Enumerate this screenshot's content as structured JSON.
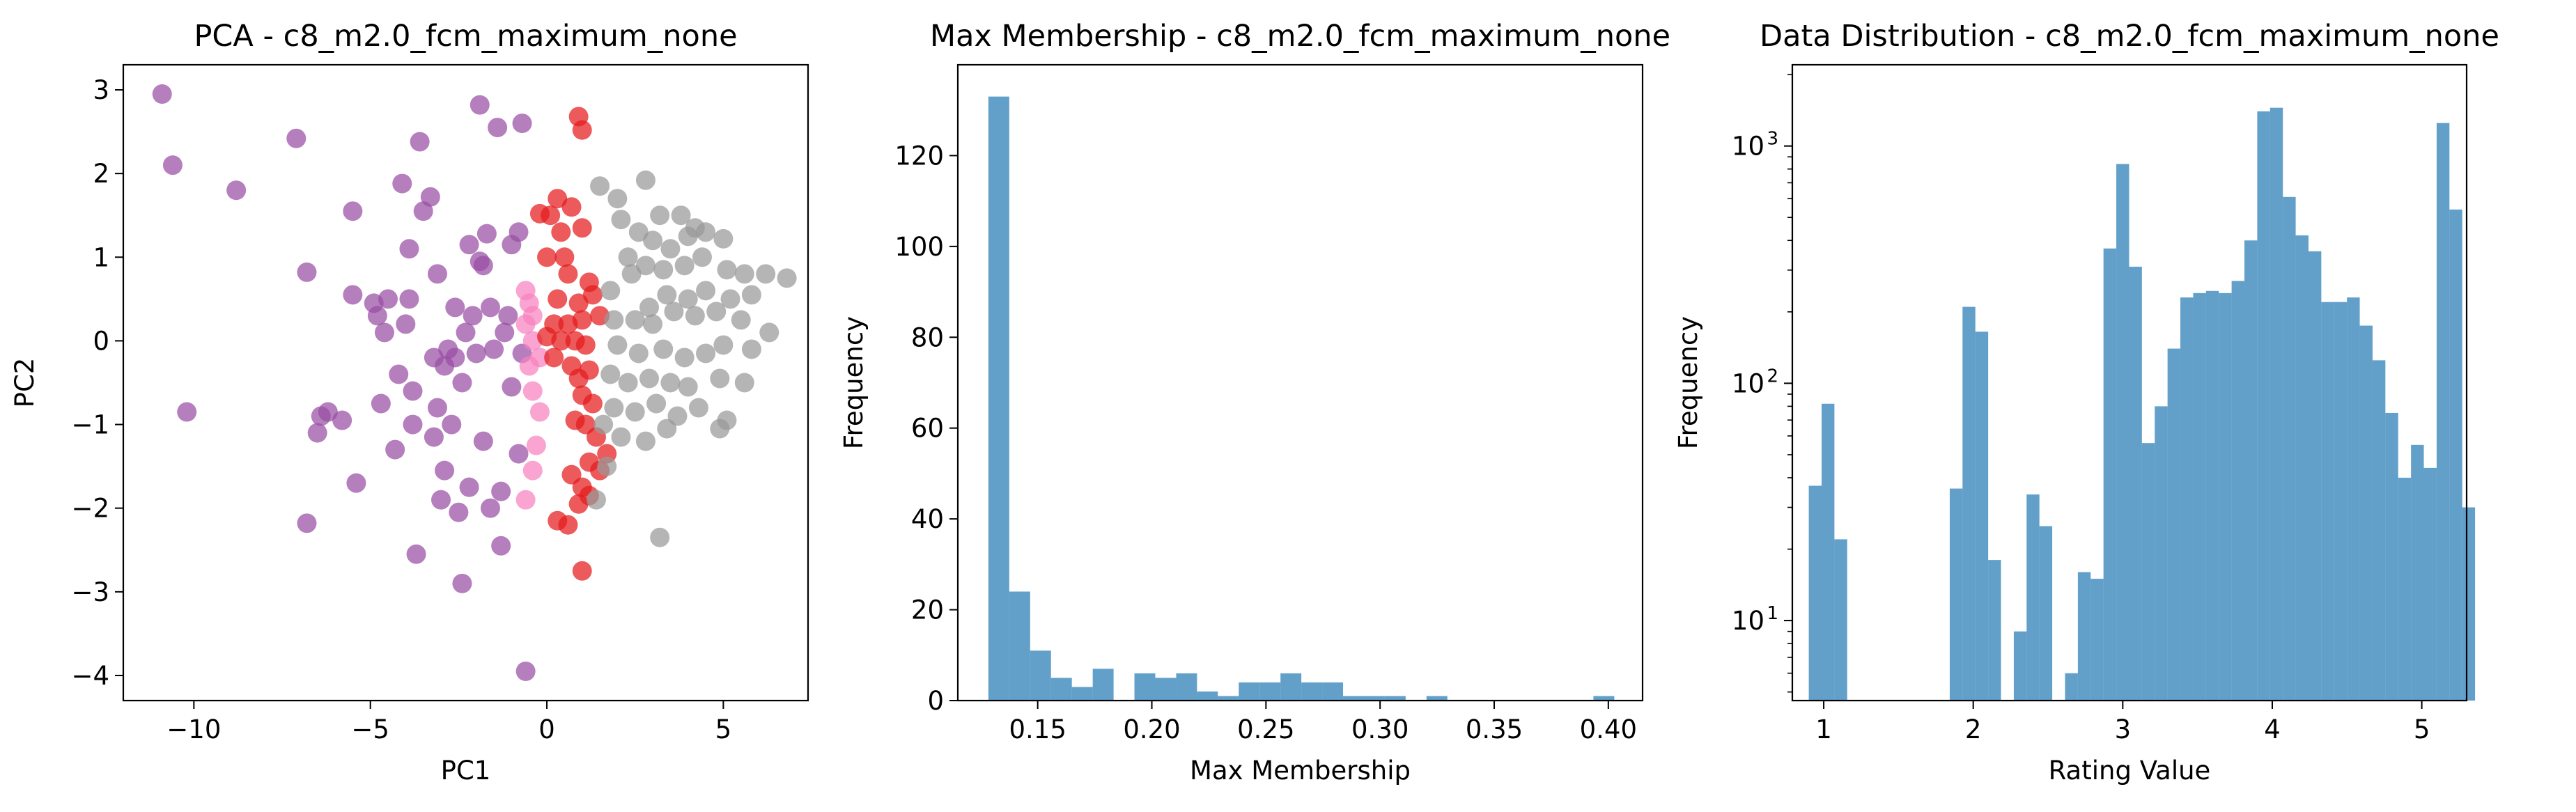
{
  "colors": {
    "purple": "#984ea3",
    "red": "#e41a1c",
    "pink": "#f781bf",
    "gray": "#999999",
    "hist": "#1f77b4"
  },
  "chart_data": [
    {
      "type": "scatter",
      "title": "PCA - c8_m2.0_fcm_maximum_none",
      "xlabel": "PC1",
      "ylabel": "PC2",
      "xlim": [
        -12,
        7.4
      ],
      "ylim": [
        -4.3,
        3.3
      ],
      "xticks": [
        -10,
        -5,
        0,
        5
      ],
      "xtick_labels": [
        "−10",
        "−5",
        "0",
        "5"
      ],
      "yticks": [
        -4,
        -3,
        -2,
        -1,
        0,
        1,
        2,
        3
      ],
      "ytick_labels": [
        "−4",
        "−3",
        "−2",
        "−1",
        "0",
        "1",
        "2",
        "3"
      ],
      "series": [
        {
          "color": "purple",
          "points": [
            [
              -10.9,
              2.95
            ],
            [
              -10.6,
              2.1
            ],
            [
              -8.8,
              1.8
            ],
            [
              -10.2,
              -0.85
            ],
            [
              -7.1,
              2.42
            ],
            [
              -6.8,
              0.82
            ],
            [
              -6.8,
              -2.18
            ],
            [
              -6.5,
              -1.1
            ],
            [
              -6.4,
              -0.9
            ],
            [
              -6.2,
              -0.85
            ],
            [
              -5.8,
              -0.95
            ],
            [
              -5.5,
              1.55
            ],
            [
              -5.5,
              0.55
            ],
            [
              -5.4,
              -1.7
            ],
            [
              -4.9,
              0.45
            ],
            [
              -4.8,
              0.3
            ],
            [
              -4.7,
              -0.75
            ],
            [
              -4.6,
              0.1
            ],
            [
              -4.5,
              0.5
            ],
            [
              -4.3,
              -1.3
            ],
            [
              -4.2,
              -0.4
            ],
            [
              -4.1,
              1.88
            ],
            [
              -4.0,
              0.2
            ],
            [
              -3.9,
              1.1
            ],
            [
              -3.9,
              0.5
            ],
            [
              -3.8,
              -0.6
            ],
            [
              -3.8,
              -1.0
            ],
            [
              -3.7,
              -2.55
            ],
            [
              -3.6,
              2.38
            ],
            [
              -3.5,
              1.55
            ],
            [
              -3.3,
              1.72
            ],
            [
              -3.2,
              -0.2
            ],
            [
              -3.2,
              -1.15
            ],
            [
              -3.1,
              0.8
            ],
            [
              -3.1,
              -0.8
            ],
            [
              -3.0,
              -1.9
            ],
            [
              -2.9,
              -0.3
            ],
            [
              -2.9,
              -1.55
            ],
            [
              -2.8,
              -0.1
            ],
            [
              -2.7,
              -1.0
            ],
            [
              -2.6,
              0.4
            ],
            [
              -2.6,
              -0.2
            ],
            [
              -2.5,
              -2.05
            ],
            [
              -2.4,
              -2.9
            ],
            [
              -2.4,
              -0.5
            ],
            [
              -2.3,
              0.1
            ],
            [
              -2.2,
              -1.75
            ],
            [
              -2.2,
              1.15
            ],
            [
              -2.1,
              0.3
            ],
            [
              -2.0,
              -0.15
            ],
            [
              -1.9,
              0.95
            ],
            [
              -1.9,
              2.82
            ],
            [
              -1.8,
              -1.2
            ],
            [
              -1.8,
              0.9
            ],
            [
              -1.7,
              1.28
            ],
            [
              -1.6,
              0.4
            ],
            [
              -1.6,
              -2.0
            ],
            [
              -1.5,
              -0.1
            ],
            [
              -1.4,
              2.55
            ],
            [
              -1.3,
              -1.8
            ],
            [
              -1.3,
              -2.45
            ],
            [
              -1.2,
              0.1
            ],
            [
              -1.1,
              0.3
            ],
            [
              -1.0,
              1.15
            ],
            [
              -1.0,
              -0.55
            ],
            [
              -0.8,
              -1.35
            ],
            [
              -0.8,
              1.3
            ],
            [
              -0.7,
              2.6
            ],
            [
              -0.6,
              -3.95
            ],
            [
              -0.7,
              -0.15
            ]
          ]
        },
        {
          "color": "pink",
          "points": [
            [
              -0.6,
              0.6
            ],
            [
              -0.5,
              0.45
            ],
            [
              -0.4,
              0.3
            ],
            [
              -0.6,
              0.2
            ],
            [
              -0.4,
              0.0
            ],
            [
              -0.2,
              -0.2
            ],
            [
              -0.5,
              -0.3
            ],
            [
              -0.4,
              -0.6
            ],
            [
              -0.2,
              -0.85
            ],
            [
              -0.3,
              -1.25
            ],
            [
              -0.4,
              -1.55
            ],
            [
              -0.6,
              -1.9
            ]
          ]
        },
        {
          "color": "red",
          "points": [
            [
              0.9,
              2.68
            ],
            [
              1.0,
              2.52
            ],
            [
              0.3,
              1.7
            ],
            [
              0.7,
              1.6
            ],
            [
              -0.2,
              1.52
            ],
            [
              0.1,
              1.5
            ],
            [
              0.4,
              1.3
            ],
            [
              1.0,
              1.35
            ],
            [
              0.5,
              1.0
            ],
            [
              0.0,
              1.0
            ],
            [
              0.6,
              0.8
            ],
            [
              1.2,
              0.7
            ],
            [
              0.3,
              0.5
            ],
            [
              0.9,
              0.45
            ],
            [
              1.3,
              0.55
            ],
            [
              0.2,
              0.2
            ],
            [
              0.6,
              0.2
            ],
            [
              1.0,
              0.25
            ],
            [
              1.5,
              0.3
            ],
            [
              0.0,
              0.05
            ],
            [
              0.4,
              0.0
            ],
            [
              0.8,
              0.0
            ],
            [
              1.1,
              -0.05
            ],
            [
              0.2,
              -0.2
            ],
            [
              0.7,
              -0.3
            ],
            [
              0.9,
              -0.45
            ],
            [
              1.2,
              -0.35
            ],
            [
              1.0,
              -0.65
            ],
            [
              1.3,
              -0.75
            ],
            [
              0.8,
              -0.95
            ],
            [
              1.1,
              -1.0
            ],
            [
              1.4,
              -1.15
            ],
            [
              1.2,
              -1.45
            ],
            [
              1.7,
              -1.35
            ],
            [
              0.7,
              -1.6
            ],
            [
              1.0,
              -1.75
            ],
            [
              0.9,
              -1.95
            ],
            [
              1.2,
              -1.85
            ],
            [
              0.3,
              -2.15
            ],
            [
              0.6,
              -2.2
            ],
            [
              1.0,
              -2.75
            ],
            [
              1.5,
              -1.55
            ]
          ]
        },
        {
          "color": "gray",
          "points": [
            [
              1.5,
              1.85
            ],
            [
              2.0,
              1.7
            ],
            [
              2.8,
              1.92
            ],
            [
              3.2,
              1.5
            ],
            [
              3.8,
              1.5
            ],
            [
              4.2,
              1.35
            ],
            [
              2.1,
              1.45
            ],
            [
              2.6,
              1.3
            ],
            [
              3.0,
              1.2
            ],
            [
              3.5,
              1.1
            ],
            [
              4.0,
              1.25
            ],
            [
              4.5,
              1.3
            ],
            [
              5.0,
              1.22
            ],
            [
              2.3,
              1.0
            ],
            [
              2.8,
              0.9
            ],
            [
              3.3,
              0.85
            ],
            [
              3.9,
              0.9
            ],
            [
              4.4,
              1.0
            ],
            [
              5.1,
              0.85
            ],
            [
              5.6,
              0.8
            ],
            [
              6.2,
              0.8
            ],
            [
              6.8,
              0.75
            ],
            [
              1.8,
              0.6
            ],
            [
              2.4,
              0.8
            ],
            [
              2.9,
              0.4
            ],
            [
              3.4,
              0.55
            ],
            [
              4.0,
              0.5
            ],
            [
              4.5,
              0.6
            ],
            [
              5.2,
              0.5
            ],
            [
              5.8,
              0.55
            ],
            [
              1.9,
              0.25
            ],
            [
              2.5,
              0.25
            ],
            [
              3.0,
              0.2
            ],
            [
              3.6,
              0.35
            ],
            [
              4.2,
              0.3
            ],
            [
              4.8,
              0.35
            ],
            [
              5.5,
              0.25
            ],
            [
              6.3,
              0.1
            ],
            [
              2.0,
              -0.05
            ],
            [
              2.6,
              -0.15
            ],
            [
              3.3,
              -0.1
            ],
            [
              3.9,
              -0.2
            ],
            [
              4.5,
              -0.15
            ],
            [
              5.0,
              -0.05
            ],
            [
              5.8,
              -0.1
            ],
            [
              1.8,
              -0.4
            ],
            [
              2.3,
              -0.5
            ],
            [
              2.9,
              -0.45
            ],
            [
              3.5,
              -0.5
            ],
            [
              4.0,
              -0.55
            ],
            [
              4.9,
              -0.45
            ],
            [
              5.6,
              -0.5
            ],
            [
              1.9,
              -0.8
            ],
            [
              2.5,
              -0.85
            ],
            [
              3.1,
              -0.75
            ],
            [
              3.7,
              -0.9
            ],
            [
              4.3,
              -0.8
            ],
            [
              5.1,
              -0.95
            ],
            [
              4.9,
              -1.05
            ],
            [
              2.1,
              -1.15
            ],
            [
              2.8,
              -1.2
            ],
            [
              3.4,
              -1.05
            ],
            [
              1.7,
              -1.5
            ],
            [
              3.2,
              -2.35
            ],
            [
              1.4,
              -1.9
            ],
            [
              1.6,
              -1.0
            ]
          ]
        }
      ]
    },
    {
      "type": "bar",
      "title": "Max Membership - c8_m2.0_fcm_maximum_none",
      "xlabel": "Max Membership",
      "ylabel": "Frequency",
      "xlim": [
        0.115,
        0.415
      ],
      "ylim": [
        0,
        140
      ],
      "xticks": [
        0.15,
        0.2,
        0.25,
        0.3,
        0.35,
        0.4
      ],
      "xtick_labels": [
        "0.15",
        "0.20",
        "0.25",
        "0.30",
        "0.35",
        "0.40"
      ],
      "yticks": [
        0,
        20,
        40,
        60,
        80,
        100,
        120
      ],
      "ytick_labels": [
        "0",
        "20",
        "40",
        "60",
        "80",
        "100",
        "120"
      ],
      "bin_start": 0.1284,
      "bin_width": 0.00914,
      "values": [
        133,
        24,
        11,
        5,
        3,
        7,
        0,
        6,
        5,
        6,
        2,
        1,
        4,
        4,
        6,
        4,
        4,
        1,
        1,
        1,
        0,
        1,
        0,
        0,
        0,
        0,
        0,
        0,
        0,
        1
      ]
    },
    {
      "type": "bar",
      "title": "Data Distribution - c8_m2.0_fcm_maximum_none",
      "xlabel": "Rating Value",
      "ylabel": "Frequency",
      "yscale": "log",
      "xlim": [
        0.79,
        5.3
      ],
      "ylim": [
        4.6,
        2200
      ],
      "xticks": [
        1,
        2,
        3,
        4,
        5
      ],
      "xtick_labels": [
        "1",
        "2",
        "3",
        "4",
        "5"
      ],
      "yticks_major": [
        10,
        100,
        1000
      ],
      "ytick_base": "10",
      "ytick_exponents": [
        "1",
        "2",
        "3"
      ],
      "bin_start": 0.9,
      "bin_width": 0.0857,
      "values": [
        37,
        82,
        22,
        0,
        0,
        0,
        0,
        0,
        0,
        0,
        0,
        36,
        210,
        165,
        18,
        0,
        9,
        34,
        25,
        0,
        6,
        16,
        15,
        370,
        840,
        310,
        56,
        80,
        140,
        230,
        240,
        245,
        240,
        270,
        400,
        1400,
        1450,
        610,
        420,
        360,
        220,
        220,
        230,
        175,
        125,
        75,
        40,
        55,
        44,
        1250,
        540,
        30
      ]
    }
  ]
}
